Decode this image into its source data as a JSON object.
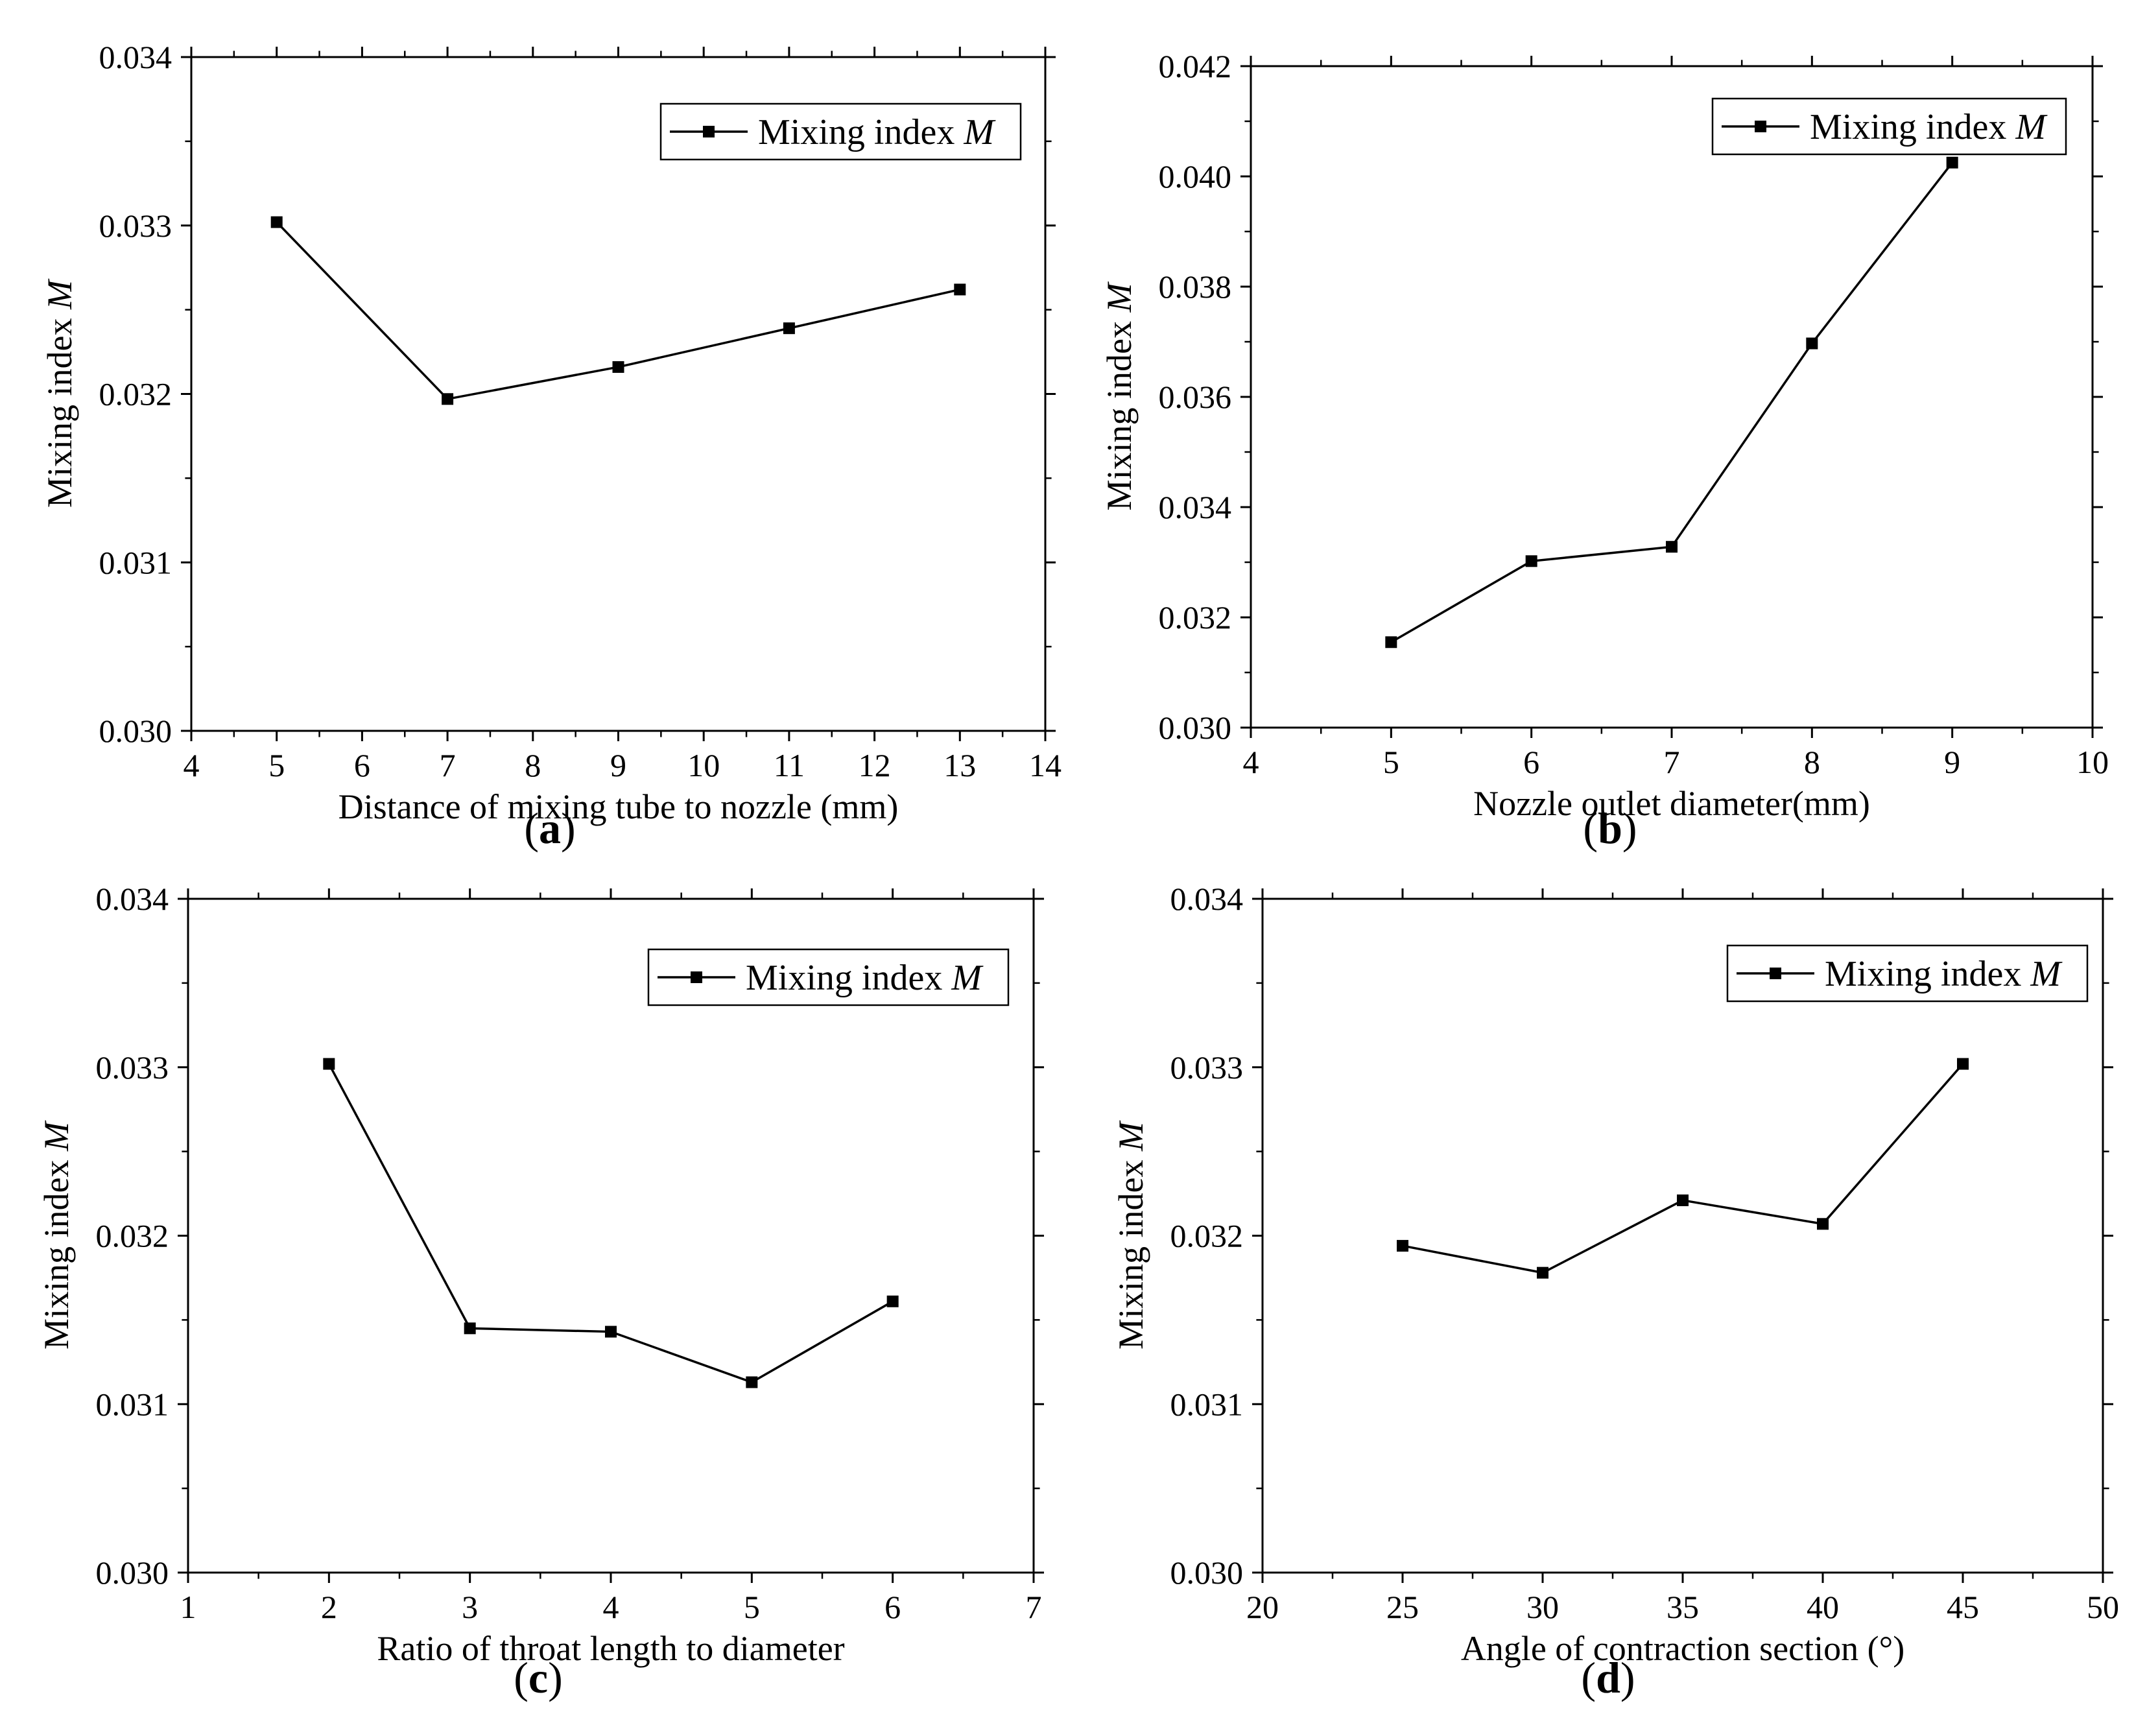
{
  "chart_data": [
    {
      "id": "a",
      "type": "line",
      "panel_label": "(a)",
      "legend_label": "Mixing index ",
      "legend_italic": "M",
      "xlabel": "Distance of mixing tube to nozzle (mm)",
      "ylabel": "Mixing index ",
      "ylabel_italic": "M",
      "xlim": [
        4,
        14
      ],
      "ylim": [
        0.03,
        0.034
      ],
      "x_ticks": [
        4,
        5,
        6,
        7,
        8,
        9,
        10,
        11,
        12,
        13,
        14
      ],
      "x_tick_labels": [
        "4",
        "5",
        "6",
        "7",
        "8",
        "9",
        "10",
        "11",
        "12",
        "13",
        "14"
      ],
      "y_ticks": [
        0.03,
        0.031,
        0.032,
        0.033,
        0.034
      ],
      "y_tick_labels": [
        "0.030",
        "0.031",
        "0.032",
        "0.033",
        "0.034"
      ],
      "x": [
        5,
        7,
        9,
        11,
        13
      ],
      "y": [
        0.03302,
        0.03197,
        0.03216,
        0.03239,
        0.03262
      ]
    },
    {
      "id": "b",
      "type": "line",
      "panel_label": "(b)",
      "legend_label": "Mixing index ",
      "legend_italic": "M",
      "xlabel": "Nozzle outlet diameter(mm)",
      "ylabel": "Mixing index ",
      "ylabel_italic": "M",
      "xlim": [
        4,
        10
      ],
      "ylim": [
        0.03,
        0.042
      ],
      "x_ticks": [
        4,
        5,
        6,
        7,
        8,
        9,
        10
      ],
      "x_tick_labels": [
        "4",
        "5",
        "6",
        "7",
        "8",
        "9",
        "10"
      ],
      "y_ticks": [
        0.03,
        0.032,
        0.034,
        0.036,
        0.038,
        0.04,
        0.042
      ],
      "y_tick_labels": [
        "0.030",
        "0.032",
        "0.034",
        "0.036",
        "0.038",
        "0.040",
        "0.042"
      ],
      "x": [
        5,
        6,
        7,
        8,
        9
      ],
      "y": [
        0.03155,
        0.03302,
        0.03328,
        0.03697,
        0.04025
      ]
    },
    {
      "id": "c",
      "type": "line",
      "panel_label": "(c)",
      "legend_label": "Mixing index ",
      "legend_italic": "M",
      "xlabel": "Ratio of throat length to diameter",
      "ylabel": "Mixing index ",
      "ylabel_italic": "M",
      "xlim": [
        1,
        7
      ],
      "ylim": [
        0.03,
        0.034
      ],
      "x_ticks": [
        1,
        2,
        3,
        4,
        5,
        6,
        7
      ],
      "x_tick_labels": [
        "1",
        "2",
        "3",
        "4",
        "5",
        "6",
        "7"
      ],
      "y_ticks": [
        0.03,
        0.031,
        0.032,
        0.033,
        0.034
      ],
      "y_tick_labels": [
        "0.030",
        "0.031",
        "0.032",
        "0.033",
        "0.034"
      ],
      "x": [
        2,
        3,
        4,
        5,
        6
      ],
      "y": [
        0.03302,
        0.03145,
        0.03143,
        0.03113,
        0.03161
      ]
    },
    {
      "id": "d",
      "type": "line",
      "panel_label": "(d)",
      "legend_label": "Mixing index ",
      "legend_italic": "M",
      "xlabel": "Angle of contraction section (°)",
      "ylabel": "Mixing index ",
      "ylabel_italic": "M",
      "xlim": [
        20,
        50
      ],
      "ylim": [
        0.03,
        0.034
      ],
      "x_ticks": [
        20,
        25,
        30,
        35,
        40,
        45,
        50
      ],
      "x_tick_labels": [
        "20",
        "25",
        "30",
        "35",
        "40",
        "45",
        "50"
      ],
      "y_ticks": [
        0.03,
        0.031,
        0.032,
        0.033,
        0.034
      ],
      "y_tick_labels": [
        "0.030",
        "0.031",
        "0.032",
        "0.033",
        "0.034"
      ],
      "x": [
        25,
        30,
        35,
        40,
        45
      ],
      "y": [
        0.03194,
        0.03178,
        0.03221,
        0.03207,
        0.03302
      ]
    }
  ],
  "colors": {
    "line": "#000000",
    "marker": "#000000",
    "frame": "#000000"
  }
}
